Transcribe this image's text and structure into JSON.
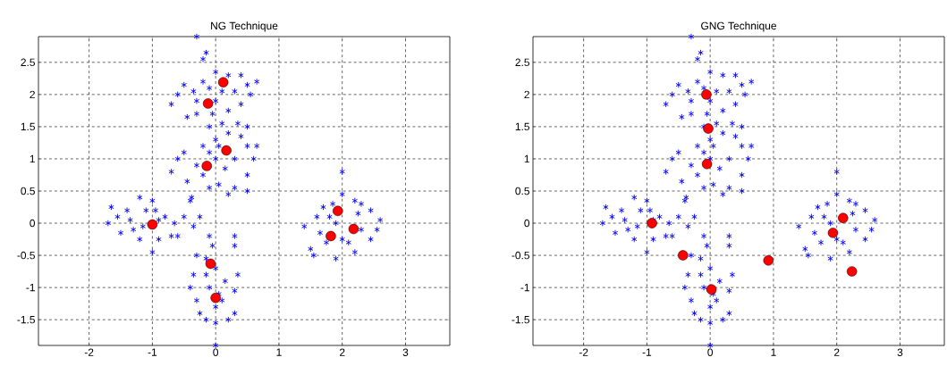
{
  "chart_data": [
    {
      "type": "scatter",
      "title": "NG Technique",
      "xlim": [
        -2.8,
        3.7
      ],
      "ylim": [
        -1.9,
        2.9
      ],
      "xticks": [
        -2,
        -1,
        0,
        1,
        2,
        3
      ],
      "yticks": [
        -1.5,
        -1,
        -0.5,
        0,
        0.5,
        1,
        1.5,
        2,
        2.5
      ],
      "grid": true,
      "series": [
        {
          "color": "#0000ff",
          "marker": "cross",
          "x": [
            -0.3,
            -0.15,
            -0.2,
            -0.6,
            -0.7,
            -0.5,
            -0.45,
            -0.3,
            -0.2,
            0,
            0.2,
            0.4,
            0.5,
            0.65,
            0.55,
            0.4,
            0.5,
            0.35,
            0.1,
            -0.1,
            -0.3,
            0,
            0.1,
            -0.1,
            0.2,
            0.3,
            -0.35,
            -0.05,
            -0.6,
            -0.7,
            -0.5,
            -0.45,
            -0.3,
            -0.2,
            0,
            0.2,
            0.4,
            0.5,
            0.65,
            0.6,
            0.5,
            0.5,
            0.3,
            0.2,
            0.05,
            -0.1,
            -0.2,
            0,
            0.15,
            -0.1,
            0.3,
            0.05,
            -0.4,
            -0.38,
            -1.7,
            -1.65,
            -1.55,
            -1.5,
            -1.4,
            -1.2,
            -1.0,
            -1.1,
            -1.3,
            -1.2,
            -1,
            -0.9,
            -0.7,
            -0.6,
            -0.5,
            -0.35,
            -0.25,
            -0.8,
            -0.95,
            -1.15,
            -0.9,
            -0.65,
            -1.35,
            -0.1,
            -0.05,
            0.3,
            0.3,
            -0.3,
            -0.15,
            0,
            -0.35,
            -0.4,
            -0.3,
            -0.25,
            -0.15,
            0,
            0.2,
            0.3,
            0.35,
            0.3,
            0.15,
            0.1,
            -0.1,
            0,
            -0.15,
            0.0,
            0.05,
            1.4,
            1.5,
            1.55,
            1.6,
            1.7,
            1.85,
            2.0,
            2.2,
            2.45,
            2.6,
            2.55,
            2.45,
            2.2,
            1.9,
            1.75,
            1.65,
            2.0,
            2.3,
            1.9,
            2.3,
            2.0,
            1.8,
            2.25,
            2.1
          ],
          "values": [
            2.9,
            2.65,
            2.55,
            2.0,
            1.85,
            2.15,
            1.65,
            1.9,
            2.2,
            2.35,
            2.3,
            2.3,
            2.15,
            2.2,
            2.0,
            1.85,
            1.5,
            1.55,
            1.55,
            1.5,
            1.7,
            1.9,
            2.05,
            2.1,
            1.75,
            2.05,
            2.05,
            1.7,
            1.0,
            0.8,
            1.1,
            0.65,
            0.9,
            1.2,
            1.3,
            1.4,
            1.35,
            1.2,
            1.2,
            1.0,
            0.75,
            0.5,
            0.55,
            0.45,
            0.6,
            0.55,
            0.75,
            1.0,
            0.85,
            1.1,
            1.0,
            1.2,
            0.35,
            0.4,
            0,
            0.25,
            0.1,
            -0.15,
            0.2,
            0.4,
            0.35,
            0.2,
            -0.1,
            -0.25,
            -0.45,
            -0.25,
            -0.2,
            -0.2,
            0.1,
            -0.05,
            0.1,
            0.1,
            0.2,
            -0.05,
            0.05,
            0,
            0.05,
            -0.2,
            -0.35,
            -0.2,
            -0.35,
            -0.5,
            -0.55,
            -0.7,
            -0.8,
            -1.0,
            -1.2,
            -1.4,
            -1.5,
            -1.55,
            -1.5,
            -1.4,
            -0.8,
            -1.05,
            -0.9,
            -1.2,
            -1.0,
            -1.3,
            -0.8,
            -1.9,
            -1.1,
            -0.05,
            -0.4,
            -0.5,
            0.1,
            0.25,
            0.3,
            0.45,
            0.35,
            0.2,
            0.05,
            -0.1,
            -0.25,
            -0.45,
            -0.55,
            -0.3,
            -0.15,
            0.8,
            0.3,
            0.0,
            -0.1,
            -0.25,
            0.1,
            0.15,
            -0.3
          ]
        },
        {
          "color": "#ff0000",
          "marker": "circle",
          "x": [
            0.12,
            -0.12,
            0.17,
            -0.14,
            -1.0,
            1.93,
            1.82,
            2.18,
            -0.08,
            0.0
          ],
          "values": [
            2.19,
            1.86,
            1.13,
            0.89,
            -0.02,
            0.19,
            -0.2,
            -0.09,
            -0.63,
            -1.16
          ]
        }
      ]
    },
    {
      "type": "scatter",
      "title": "GNG Technique",
      "xlim": [
        -2.8,
        3.7
      ],
      "ylim": [
        -1.9,
        2.9
      ],
      "xticks": [
        -2,
        -1,
        0,
        1,
        2,
        3
      ],
      "yticks": [
        -1.5,
        -1,
        -0.5,
        0,
        0.5,
        1,
        1.5,
        2,
        2.5
      ],
      "grid": true,
      "series": [
        {
          "color": "#0000ff",
          "marker": "cross",
          "x": [
            -0.3,
            -0.15,
            -0.2,
            -0.6,
            -0.7,
            -0.5,
            -0.45,
            -0.3,
            -0.2,
            0,
            0.2,
            0.4,
            0.5,
            0.65,
            0.55,
            0.4,
            0.5,
            0.35,
            0.1,
            -0.1,
            -0.3,
            0,
            0.1,
            -0.1,
            0.2,
            0.3,
            -0.35,
            -0.05,
            -0.6,
            -0.7,
            -0.5,
            -0.45,
            -0.3,
            -0.2,
            0,
            0.2,
            0.4,
            0.5,
            0.65,
            0.6,
            0.5,
            0.5,
            0.3,
            0.2,
            0.05,
            -0.1,
            -0.2,
            0,
            0.15,
            -0.1,
            0.3,
            0.05,
            -0.4,
            -0.38,
            -1.7,
            -1.65,
            -1.55,
            -1.5,
            -1.4,
            -1.2,
            -1.0,
            -1.1,
            -1.3,
            -1.2,
            -1,
            -0.9,
            -0.7,
            -0.6,
            -0.5,
            -0.35,
            -0.25,
            -0.8,
            -0.95,
            -1.15,
            -0.9,
            -0.65,
            -1.35,
            -0.1,
            -0.05,
            0.3,
            0.3,
            -0.3,
            -0.15,
            0,
            -0.35,
            -0.4,
            -0.3,
            -0.25,
            -0.15,
            0,
            0.2,
            0.3,
            0.35,
            0.3,
            0.15,
            0.1,
            -0.1,
            0,
            -0.15,
            0.0,
            0.05,
            1.4,
            1.5,
            1.55,
            1.6,
            1.7,
            1.85,
            2.0,
            2.2,
            2.45,
            2.6,
            2.55,
            2.45,
            2.2,
            1.9,
            1.75,
            1.65,
            2.0,
            2.3,
            1.9,
            2.3,
            2.0,
            1.8,
            2.25,
            2.1
          ],
          "values": [
            2.9,
            2.65,
            2.55,
            2.0,
            1.85,
            2.15,
            1.65,
            1.9,
            2.2,
            2.35,
            2.3,
            2.3,
            2.15,
            2.2,
            2.0,
            1.85,
            1.5,
            1.55,
            1.55,
            1.5,
            1.7,
            1.9,
            2.05,
            2.1,
            1.75,
            2.05,
            2.05,
            1.7,
            1.0,
            0.8,
            1.1,
            0.65,
            0.9,
            1.2,
            1.3,
            1.4,
            1.35,
            1.2,
            1.2,
            1.0,
            0.75,
            0.5,
            0.55,
            0.45,
            0.6,
            0.55,
            0.75,
            1.0,
            0.85,
            1.1,
            1.0,
            1.2,
            0.35,
            0.4,
            0,
            0.25,
            0.1,
            -0.15,
            0.2,
            0.4,
            0.35,
            0.2,
            -0.1,
            -0.25,
            -0.45,
            -0.25,
            -0.2,
            -0.2,
            0.1,
            -0.05,
            0.1,
            0.1,
            0.2,
            -0.05,
            0.05,
            0,
            0.05,
            -0.2,
            -0.35,
            -0.2,
            -0.35,
            -0.5,
            -0.55,
            -0.7,
            -0.8,
            -1.0,
            -1.2,
            -1.4,
            -1.5,
            -1.55,
            -1.5,
            -1.4,
            -0.8,
            -1.05,
            -0.9,
            -1.2,
            -1.0,
            -1.3,
            -0.8,
            -1.9,
            -1.1,
            -0.05,
            -0.4,
            -0.5,
            0.1,
            0.25,
            0.3,
            0.45,
            0.35,
            0.2,
            0.05,
            -0.1,
            -0.25,
            -0.45,
            -0.55,
            -0.3,
            -0.15,
            0.8,
            0.3,
            0.0,
            -0.1,
            -0.25,
            0.1,
            0.15,
            -0.3
          ]
        },
        {
          "color": "#ff0000",
          "marker": "circle",
          "x": [
            -0.06,
            -0.03,
            -0.05,
            -0.92,
            -0.43,
            0.02,
            0.92,
            2.1,
            1.94,
            2.24
          ],
          "values": [
            2.0,
            1.47,
            0.92,
            0.0,
            -0.5,
            -1.03,
            -0.58,
            0.08,
            -0.15,
            -0.75
          ]
        }
      ]
    }
  ]
}
